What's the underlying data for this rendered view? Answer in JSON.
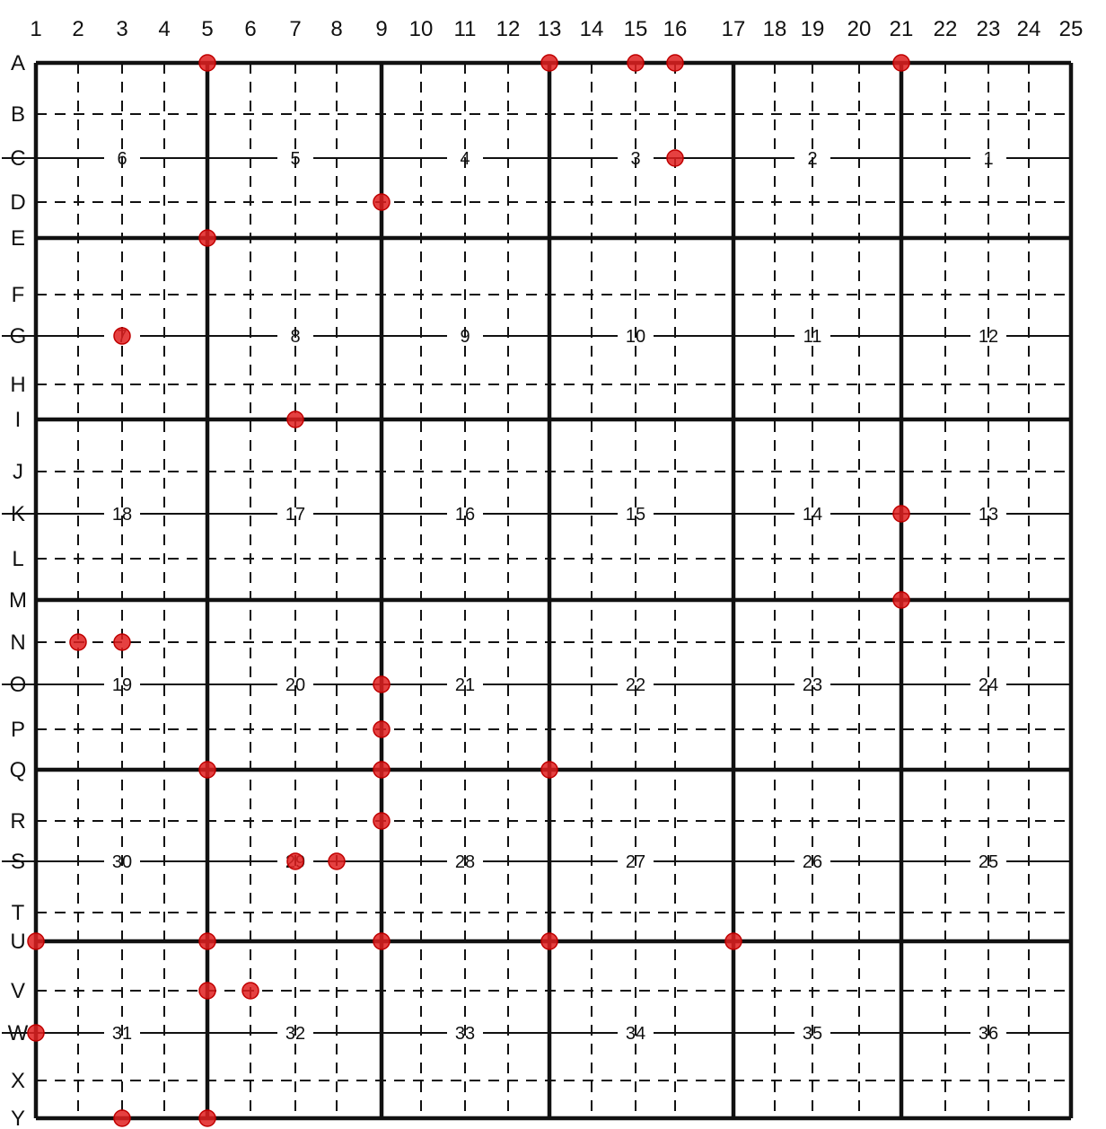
{
  "grid": {
    "column_labels": [
      "1",
      "2",
      "3",
      "4",
      "5",
      "6",
      "7",
      "8",
      "9",
      "10",
      "11",
      "12",
      "13",
      "14",
      "15",
      "16",
      "17",
      "18",
      "19",
      "20",
      "21",
      "22",
      "23",
      "24",
      "25"
    ],
    "row_labels": [
      "A",
      "B",
      "C",
      "D",
      "E",
      "F",
      "G",
      "H",
      "I",
      "J",
      "K",
      "L",
      "M",
      "N",
      "O",
      "P",
      "Q",
      "R",
      "S",
      "T",
      "U",
      "V",
      "W",
      "X",
      "Y"
    ],
    "heavy_columns": [
      "1",
      "5",
      "9",
      "13",
      "17",
      "21",
      "25"
    ],
    "heavy_rows": [
      "A",
      "E",
      "I",
      "M",
      "Q",
      "U",
      "Y"
    ],
    "section_rows": [
      {
        "row": "C",
        "labels": [
          "6",
          "5",
          "4",
          "3",
          "2",
          "1"
        ]
      },
      {
        "row": "G",
        "labels": [
          "7",
          "8",
          "9",
          "10",
          "11",
          "12"
        ]
      },
      {
        "row": "K",
        "labels": [
          "18",
          "17",
          "16",
          "15",
          "14",
          "13"
        ]
      },
      {
        "row": "O",
        "labels": [
          "19",
          "20",
          "21",
          "22",
          "23",
          "24"
        ]
      },
      {
        "row": "S",
        "labels": [
          "30",
          "29",
          "28",
          "27",
          "26",
          "25"
        ]
      },
      {
        "row": "W",
        "labels": [
          "31",
          "32",
          "33",
          "34",
          "35",
          "36"
        ]
      }
    ],
    "marker_color": "#e02020",
    "line_color": "#111111",
    "markers": [
      [
        "A",
        5
      ],
      [
        "A",
        13
      ],
      [
        "A",
        15
      ],
      [
        "A",
        16
      ],
      [
        "A",
        21
      ],
      [
        "C",
        16
      ],
      [
        "D",
        9
      ],
      [
        "E",
        5
      ],
      [
        "G",
        3
      ],
      [
        "I",
        7
      ],
      [
        "K",
        21
      ],
      [
        "M",
        21
      ],
      [
        "N",
        2
      ],
      [
        "N",
        3
      ],
      [
        "O",
        9
      ],
      [
        "P",
        9
      ],
      [
        "Q",
        5
      ],
      [
        "Q",
        9
      ],
      [
        "Q",
        13
      ],
      [
        "R",
        9
      ],
      [
        "S",
        7
      ],
      [
        "S",
        8
      ],
      [
        "U",
        1
      ],
      [
        "U",
        5
      ],
      [
        "U",
        9
      ],
      [
        "U",
        13
      ],
      [
        "U",
        17
      ],
      [
        "V",
        5
      ],
      [
        "V",
        6
      ],
      [
        "W",
        1
      ],
      [
        "Y",
        3
      ],
      [
        "Y",
        5
      ]
    ]
  }
}
